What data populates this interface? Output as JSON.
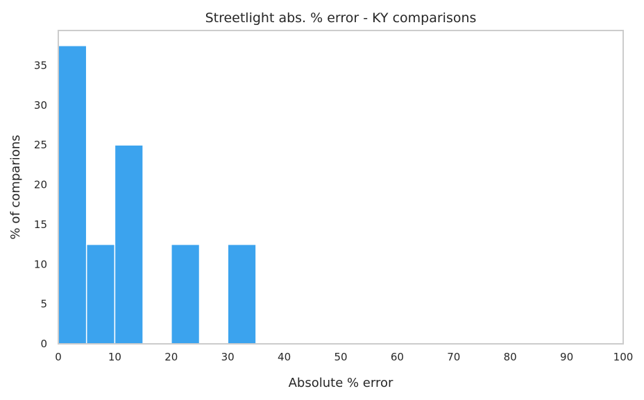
{
  "chart_data": {
    "type": "bar",
    "title": "Streetlight abs. % error - KY comparisons",
    "xlabel": "Absolute % error",
    "ylabel": "% of comparions",
    "xlim": [
      0,
      100
    ],
    "ylim": [
      0,
      39.4
    ],
    "xticks": [
      0,
      10,
      20,
      30,
      40,
      50,
      60,
      70,
      80,
      90,
      100
    ],
    "yticks": [
      0,
      5,
      10,
      15,
      20,
      25,
      30,
      35
    ],
    "bin_width": 5,
    "bins": [
      {
        "x0": 0,
        "x1": 5,
        "value": 37.5
      },
      {
        "x0": 5,
        "x1": 10,
        "value": 12.5
      },
      {
        "x0": 10,
        "x1": 15,
        "value": 25
      },
      {
        "x0": 20,
        "x1": 25,
        "value": 12.5
      },
      {
        "x0": 30,
        "x1": 35,
        "value": 12.5
      }
    ],
    "bar_color": "#3ba3ee",
    "grid": false
  }
}
